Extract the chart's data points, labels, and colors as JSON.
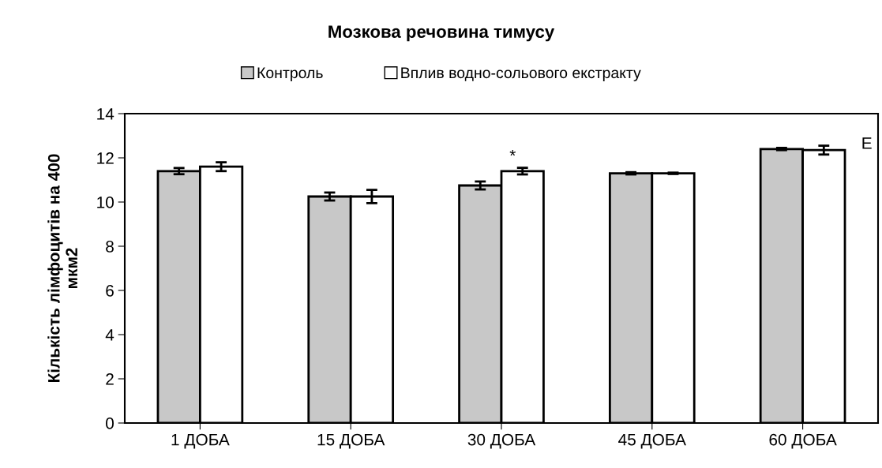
{
  "chart_data": {
    "type": "bar",
    "title": "Мозкова речовина тимусу",
    "ylabel": "Кількість лімфоцитів на 400\nмкм2",
    "categories": [
      "1 ДОБА",
      "15 ДОБА",
      "30 ДОБА",
      "45 ДОБА",
      "60 ДОБА"
    ],
    "series": [
      {
        "name": "Контроль",
        "color": "#c8c8c8",
        "values": [
          11.4,
          10.25,
          10.75,
          11.3,
          12.4
        ],
        "errors": [
          0.14,
          0.18,
          0.18,
          0.05,
          0.05
        ]
      },
      {
        "name": "Вплив водно-сольового екстракту",
        "color": "#ffffff",
        "values": [
          11.6,
          10.25,
          11.4,
          11.3,
          12.35
        ],
        "errors": [
          0.2,
          0.3,
          0.15,
          0.03,
          0.2
        ]
      }
    ],
    "annotations": [
      "*",
      "E"
    ],
    "ylim": [
      0,
      14
    ],
    "yticks": [
      0,
      2,
      4,
      6,
      8,
      10,
      12,
      14
    ],
    "grid": false,
    "legend": "top"
  }
}
